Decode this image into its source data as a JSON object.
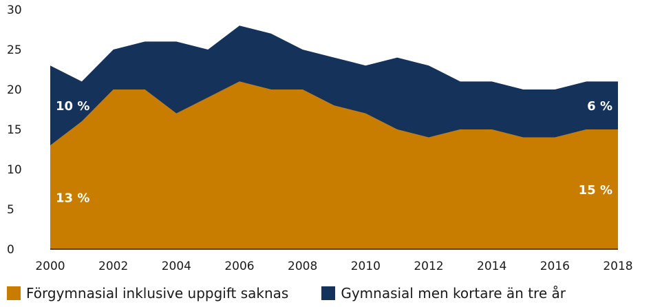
{
  "chart_data": {
    "type": "area",
    "stacked": true,
    "x": [
      2000,
      2001,
      2002,
      2003,
      2004,
      2005,
      2006,
      2007,
      2008,
      2009,
      2010,
      2011,
      2012,
      2013,
      2014,
      2015,
      2016,
      2017,
      2018
    ],
    "x_ticks": [
      "2000",
      "2002",
      "2004",
      "2006",
      "2008",
      "2010",
      "2012",
      "2014",
      "2016",
      "2018"
    ],
    "y_ticks": [
      "0",
      "5",
      "10",
      "15",
      "20",
      "25",
      "30"
    ],
    "ylim": [
      0,
      30
    ],
    "series": [
      {
        "name": "Förgymnasial inklusive uppgift saknas",
        "color": "#c97d00",
        "values": [
          13,
          16,
          20,
          20,
          17,
          19,
          21,
          20,
          20,
          18,
          17,
          15,
          14,
          15,
          15,
          14,
          14,
          15,
          15
        ]
      },
      {
        "name": "Gymnasial men kortare än tre år",
        "color": "#14325a",
        "values": [
          10,
          5,
          5,
          6,
          9,
          6,
          7,
          7,
          5,
          6,
          6,
          9,
          9,
          6,
          6,
          6,
          6,
          6,
          6
        ]
      }
    ],
    "annotations": [
      {
        "text": "10 %",
        "x": 2000,
        "series": 1
      },
      {
        "text": "13 %",
        "x": 2000,
        "series": 0
      },
      {
        "text": "6 %",
        "x": 2018,
        "series": 1
      },
      {
        "text": "15 %",
        "x": 2018,
        "series": 0
      }
    ],
    "grid": false,
    "legend_position": "bottom"
  }
}
